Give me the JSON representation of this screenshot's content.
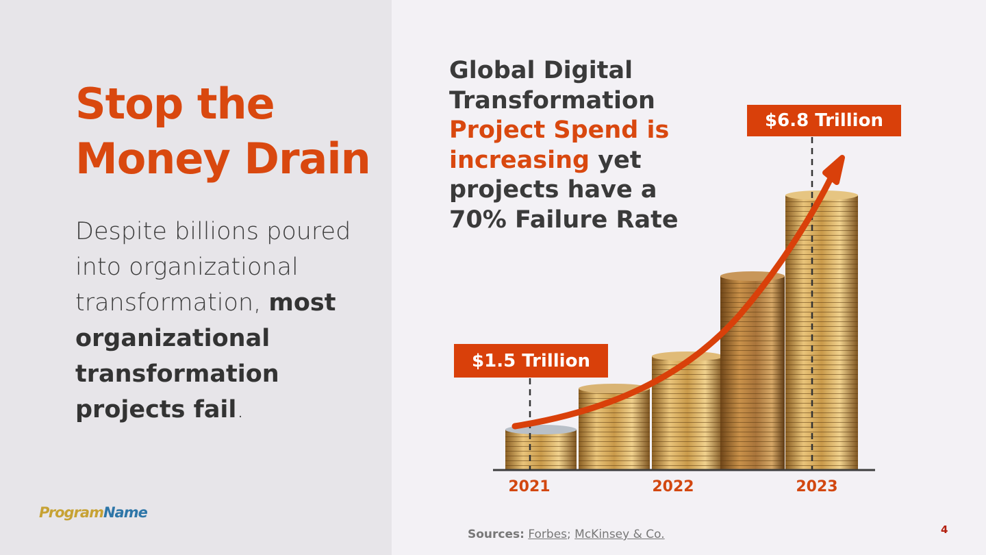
{
  "slide": {
    "title": "Stop the Money Drain",
    "body_normal": "Despite billions poured into organizational transformation,",
    "body_strong": "most organizational transformation projects fail",
    "body_end": ".",
    "logo_part1": "Program",
    "logo_part2": "Name",
    "page_number": "4"
  },
  "headline": {
    "line_a": "Global Digital Transformation",
    "accent": "Project Spend is increasing",
    "line_b": "yet projects have a 70% Failure Rate"
  },
  "callouts": {
    "start": "$1.5 Trillion",
    "end": "$6.8 Trillion"
  },
  "chart_data": {
    "type": "bar",
    "categories": [
      "2021",
      "2022",
      "2023"
    ],
    "annotations": [
      {
        "category": "2021",
        "label": "$1.5 Trillion",
        "value": 1.5
      },
      {
        "category": "2023",
        "label": "$6.8 Trillion",
        "value": 6.8
      }
    ],
    "trend": "increasing"
  },
  "sources": {
    "label": "Sources:",
    "link1": "Forbes",
    "sep": ";",
    "link2": "McKinsey & Co."
  },
  "colors": {
    "accent": "#d9480f",
    "callout_bg": "#d9400a",
    "text_dark": "#3a3a3a",
    "coin_gold": "#c99a4a"
  }
}
